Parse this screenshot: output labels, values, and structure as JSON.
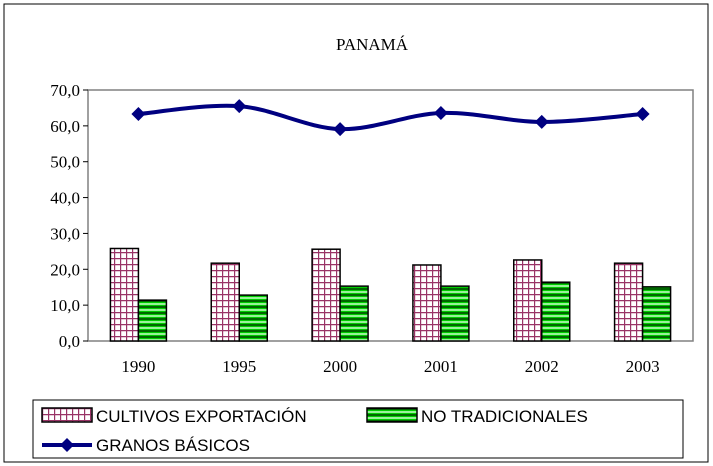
{
  "chart_data": {
    "type": "bar",
    "title": "PANAMÁ",
    "categories": [
      "1990",
      "1995",
      "2000",
      "2001",
      "2002",
      "2003"
    ],
    "series": [
      {
        "name": "CULTIVOS EXPORTACIÓN",
        "type": "bar",
        "color": "#993366",
        "values": [
          25.8,
          21.7,
          25.6,
          21.2,
          22.6,
          21.7
        ]
      },
      {
        "name": "NO TRADICIONALES",
        "type": "bar",
        "color": "#00cc00",
        "values": [
          11.4,
          12.8,
          15.3,
          15.3,
          16.4,
          15.1
        ]
      },
      {
        "name": "GRANOS BÁSICOS",
        "type": "line",
        "color": "#000080",
        "values": [
          63.3,
          65.5,
          59.1,
          63.6,
          61.1,
          63.3
        ]
      }
    ],
    "ylim": [
      0,
      70
    ],
    "yticks": [
      {
        "value": 0,
        "label": "0,0"
      },
      {
        "value": 10,
        "label": "10,0"
      },
      {
        "value": 20,
        "label": "20,0"
      },
      {
        "value": 30,
        "label": "30,0"
      },
      {
        "value": 40,
        "label": "40,0"
      },
      {
        "value": 50,
        "label": "50,0"
      },
      {
        "value": 60,
        "label": "60,0"
      },
      {
        "value": 70,
        "label": "70,0"
      }
    ],
    "legend": "bottom"
  }
}
